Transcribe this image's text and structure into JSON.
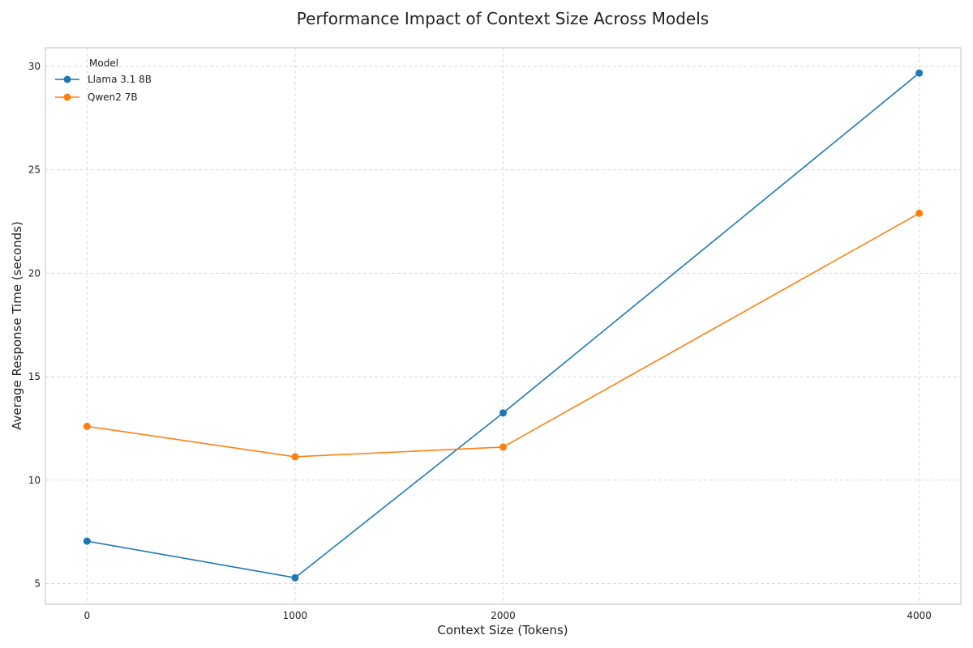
{
  "chart_data": {
    "type": "line",
    "title": "Performance Impact of Context Size Across Models",
    "xlabel": "Context Size (Tokens)",
    "ylabel": "Average Response Time (seconds)",
    "x": [
      0,
      1000,
      2000,
      4000
    ],
    "x_ticks": [
      0,
      1000,
      2000,
      4000
    ],
    "y_ticks": [
      5,
      10,
      15,
      20,
      25,
      30
    ],
    "xlim": [
      -200,
      4200
    ],
    "ylim": [
      4.0,
      30.9
    ],
    "grid": true,
    "legend": {
      "title": "Model",
      "location": "top-left"
    },
    "series": [
      {
        "name": "Llama 3.1 8B",
        "color": "#1f77b4",
        "values": [
          7.05,
          5.28,
          13.25,
          29.68
        ]
      },
      {
        "name": "Qwen2 7B",
        "color": "#ff7f0e",
        "values": [
          12.6,
          11.13,
          11.6,
          22.9
        ]
      }
    ]
  }
}
